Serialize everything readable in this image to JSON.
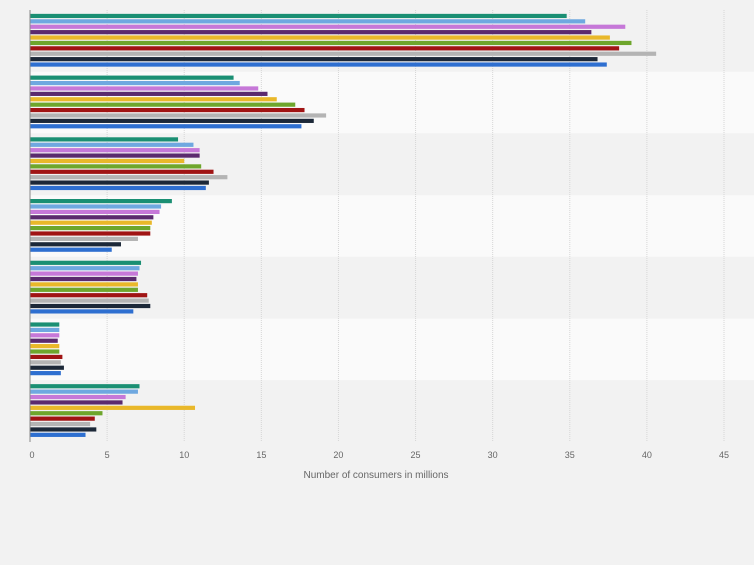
{
  "chart_data": {
    "type": "bar",
    "orientation": "horizontal",
    "xlabel": "Number of consumers in millions",
    "xlim": [
      0,
      45
    ],
    "x_ticks": [
      "0",
      "5",
      "10",
      "15",
      "20",
      "25",
      "30",
      "35",
      "40",
      "45"
    ],
    "grid": "vertical",
    "legend": "none",
    "category_count": 7,
    "series": [
      {
        "color": "#1a8f73",
        "values": [
          34.8,
          13.2,
          9.6,
          9.2,
          7.2,
          1.9,
          7.1
        ]
      },
      {
        "color": "#6fa8e0",
        "values": [
          36.0,
          13.6,
          10.6,
          8.5,
          7.1,
          1.9,
          7.0
        ]
      },
      {
        "color": "#c678d8",
        "values": [
          38.6,
          14.8,
          11.0,
          8.4,
          7.0,
          1.9,
          6.2
        ]
      },
      {
        "color": "#5b2a6e",
        "values": [
          36.4,
          15.4,
          11.0,
          8.0,
          6.9,
          1.8,
          6.0
        ]
      },
      {
        "color": "#e9b82a",
        "values": [
          37.6,
          16.0,
          10.0,
          7.9,
          7.0,
          1.9,
          10.7
        ]
      },
      {
        "color": "#6ea62c",
        "values": [
          39.0,
          17.2,
          11.1,
          7.8,
          7.0,
          1.9,
          4.7
        ]
      },
      {
        "color": "#a01414",
        "values": [
          38.2,
          17.8,
          11.9,
          7.8,
          7.6,
          2.1,
          4.2
        ]
      },
      {
        "color": "#b4b4b4",
        "values": [
          40.6,
          19.2,
          12.8,
          7.0,
          7.7,
          2.0,
          3.9
        ]
      },
      {
        "color": "#1c2838",
        "values": [
          36.8,
          18.4,
          11.6,
          5.9,
          7.8,
          2.2,
          4.3
        ]
      },
      {
        "color": "#2e6fd0",
        "values": [
          37.4,
          17.6,
          11.4,
          5.3,
          6.7,
          2.0,
          3.6
        ]
      }
    ]
  }
}
